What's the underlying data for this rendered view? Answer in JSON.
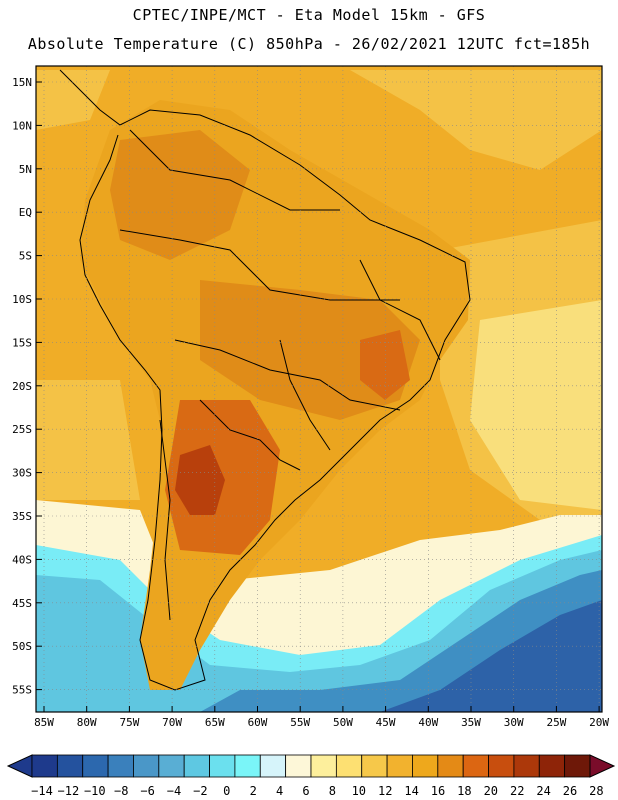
{
  "header": {
    "line1": "CPTEC/INPE/MCT -  Eta Model 15km - GFS",
    "line2": "Absolute Temperature (C) 850hPa - 26/02/2021 12UTC fct=185h"
  },
  "axes": {
    "lat_labels": [
      "15N",
      "10N",
      "5N",
      "EQ",
      "5S",
      "10S",
      "15S",
      "20S",
      "25S",
      "30S",
      "35S",
      "40S",
      "45S",
      "50S",
      "55S"
    ],
    "lon_labels": [
      "85W",
      "80W",
      "75W",
      "70W",
      "65W",
      "60W",
      "55W",
      "50W",
      "45W",
      "40W",
      "35W",
      "30W",
      "25W",
      "20W"
    ]
  },
  "colorbar": {
    "labels": [
      "-14",
      "-12",
      "-10",
      "-8",
      "-6",
      "-4",
      "-2",
      "0",
      "2",
      "4",
      "6",
      "8",
      "10",
      "12",
      "14",
      "16",
      "18",
      "20",
      "22",
      "24",
      "26",
      "28"
    ],
    "colors": [
      "#1e3a8c",
      "#24529e",
      "#2c68ae",
      "#3a80bc",
      "#4a97c8",
      "#59aed4",
      "#5ec8e2",
      "#6be0ee",
      "#7af5f8",
      "#d6f4fa",
      "#fdf7d8",
      "#fdef9c",
      "#fde072",
      "#f6c84a",
      "#f2b22e",
      "#eea81c",
      "#e48a16",
      "#dc6612",
      "#c84e0e",
      "#ac380a",
      "#8e2408",
      "#6e1808"
    ]
  },
  "map_colors": {
    "land_base": "#eba51f",
    "ocean_warm": "#f0ad27",
    "ocean_mid": "#f4c246",
    "ocean_light": "#f9df7c",
    "pale": "#fdf6d4",
    "cyan": "#79ecf6",
    "light_blue": "#5fc6e0",
    "blue": "#3f8fc3",
    "deep_blue": "#2d62a8",
    "hot1": "#e08c18",
    "hot2": "#d96a14",
    "hot3": "#b8400c"
  }
}
